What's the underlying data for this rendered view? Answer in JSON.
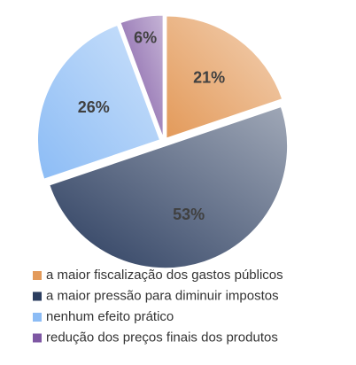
{
  "chart_data": {
    "type": "pie",
    "categories": [
      "a maior fiscalização dos gastos públicos",
      "a maior pressão para diminuir impostos",
      "nenhum efeito prático",
      "redução dos preços finais dos produtos"
    ],
    "values": [
      21,
      53,
      26,
      6
    ],
    "value_labels": [
      "21%",
      "53%",
      "26%",
      "6%"
    ],
    "colors": [
      "#e39a5a",
      "#2b3d5f",
      "#8cbcf5",
      "#7e57a3"
    ]
  }
}
